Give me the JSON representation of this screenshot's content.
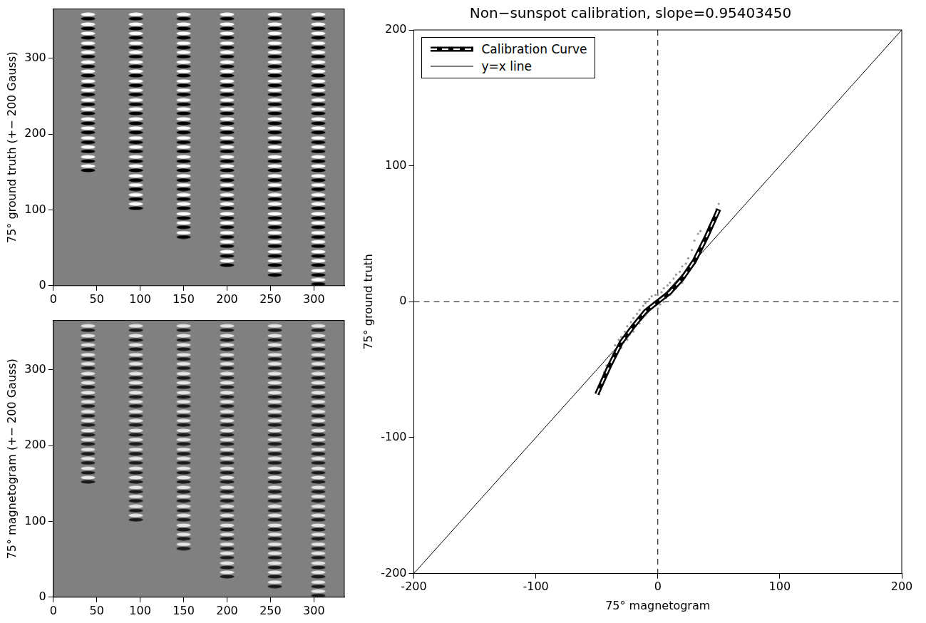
{
  "chart_data": [
    {
      "type": "image",
      "y_label": "75° ground truth (+− 200 Gauss)",
      "xlim": [
        0,
        335
      ],
      "ylim": [
        0,
        365
      ],
      "xticks": [
        0,
        50,
        100,
        150,
        200,
        250,
        300
      ],
      "yticks": [
        0,
        100,
        200,
        300
      ],
      "marker": "dipole",
      "colors": [
        "#ffffff",
        "#000000"
      ],
      "features": [
        {
          "x": 40,
          "y": [
            155,
            167,
            180,
            192,
            205,
            217,
            230,
            242,
            255,
            267,
            280,
            292,
            305,
            317,
            330,
            342,
            355
          ]
        },
        {
          "x": 95,
          "y": [
            105,
            117,
            130,
            142,
            155,
            167,
            180,
            192,
            205,
            217,
            230,
            242,
            255,
            267,
            280,
            292,
            305,
            317,
            330,
            342,
            355
          ]
        },
        {
          "x": 150,
          "y": [
            67,
            80,
            92,
            105,
            117,
            130,
            142,
            155,
            167,
            180,
            192,
            205,
            217,
            230,
            242,
            255,
            267,
            280,
            292,
            305,
            317,
            330,
            342,
            355
          ]
        },
        {
          "x": 200,
          "y": [
            30,
            42,
            55,
            67,
            80,
            92,
            105,
            117,
            130,
            142,
            155,
            167,
            180,
            192,
            205,
            217,
            230,
            242,
            255,
            267,
            280,
            292,
            305,
            317,
            330,
            342,
            355
          ]
        },
        {
          "x": 255,
          "y": [
            17,
            30,
            42,
            55,
            67,
            80,
            92,
            105,
            117,
            130,
            142,
            155,
            167,
            180,
            192,
            205,
            217,
            230,
            242,
            255,
            267,
            280,
            292,
            305,
            317,
            330,
            342,
            355
          ]
        },
        {
          "x": 305,
          "y": [
            5,
            17,
            30,
            42,
            55,
            67,
            80,
            92,
            105,
            117,
            130,
            142,
            155,
            167,
            180,
            192,
            205,
            217,
            230,
            242,
            255,
            267,
            280,
            292,
            305,
            317,
            330,
            342,
            355
          ]
        }
      ]
    },
    {
      "type": "image",
      "y_label": "75° magnetogram (+− 200 Gauss)",
      "xlim": [
        0,
        335
      ],
      "ylim": [
        0,
        365
      ],
      "xticks": [
        0,
        50,
        100,
        150,
        200,
        250,
        300
      ],
      "yticks": [
        0,
        100,
        200,
        300
      ],
      "marker": "dipole",
      "colors": [
        "#e6e6e6",
        "#1a1a1a"
      ],
      "features": [
        {
          "x": 40,
          "y": [
            155,
            167,
            180,
            192,
            205,
            217,
            230,
            242,
            255,
            267,
            280,
            292,
            305,
            317,
            330,
            342,
            355
          ]
        },
        {
          "x": 95,
          "y": [
            105,
            117,
            130,
            142,
            155,
            167,
            180,
            192,
            205,
            217,
            230,
            242,
            255,
            267,
            280,
            292,
            305,
            317,
            330,
            342,
            355
          ]
        },
        {
          "x": 150,
          "y": [
            67,
            80,
            92,
            105,
            117,
            130,
            142,
            155,
            167,
            180,
            192,
            205,
            217,
            230,
            242,
            255,
            267,
            280,
            292,
            305,
            317,
            330,
            342,
            355
          ]
        },
        {
          "x": 200,
          "y": [
            30,
            42,
            55,
            67,
            80,
            92,
            105,
            117,
            130,
            142,
            155,
            167,
            180,
            192,
            205,
            217,
            230,
            242,
            255,
            267,
            280,
            292,
            305,
            317,
            330,
            342,
            355
          ]
        },
        {
          "x": 255,
          "y": [
            17,
            30,
            42,
            55,
            67,
            80,
            92,
            105,
            117,
            130,
            142,
            155,
            167,
            180,
            192,
            205,
            217,
            230,
            242,
            255,
            267,
            280,
            292,
            305,
            317,
            330,
            342,
            355
          ]
        },
        {
          "x": 305,
          "y": [
            5,
            17,
            30,
            42,
            55,
            67,
            80,
            92,
            105,
            117,
            130,
            142,
            155,
            167,
            180,
            192,
            205,
            217,
            230,
            242,
            255,
            267,
            280,
            292,
            305,
            317,
            330,
            342,
            355
          ]
        }
      ]
    },
    {
      "type": "scatter",
      "title": "Non−sunspot calibration, slope=0.95403450",
      "x_label": "75° magnetogram",
      "y_label": "75° ground truth",
      "xlim": [
        -200,
        200
      ],
      "ylim": [
        -200,
        200
      ],
      "xticks": [
        -200,
        -100,
        0,
        100,
        200
      ],
      "yticks": [
        -200,
        -100,
        0,
        100,
        200
      ],
      "legend": "upper left",
      "reference_lines": [
        {
          "axis": "x",
          "value": 0,
          "line_style": "dashed"
        },
        {
          "axis": "y",
          "value": 0,
          "line_style": "dashed"
        }
      ],
      "series": [
        {
          "type": "scatter",
          "marker": "dot",
          "color": "#999999",
          "x": [
            -48,
            -45,
            -44,
            -42,
            -40,
            -40,
            -38,
            -37,
            -35,
            -35,
            -33,
            -32,
            -30,
            -30,
            -28,
            -27,
            -25,
            -25,
            -23,
            -22,
            -20,
            -20,
            -18,
            -17,
            -15,
            -15,
            -13,
            -12,
            -10,
            -10,
            -8,
            -7,
            -5,
            -5,
            -3,
            -2,
            0,
            0,
            2,
            3,
            5,
            5,
            7,
            8,
            10,
            10,
            12,
            13,
            15,
            15,
            17,
            18,
            20,
            20,
            22,
            23,
            25,
            25,
            28,
            28,
            30,
            30,
            32,
            33,
            35,
            35,
            38,
            40,
            42,
            45,
            48,
            50
          ],
          "values": [
            -68,
            -60,
            -52,
            -47,
            -50,
            -40,
            -44,
            -38,
            -40,
            -32,
            -36,
            -28,
            -34,
            -26,
            -30,
            -22,
            -28,
            -18,
            -24,
            -15,
            -22,
            -12,
            -18,
            -9,
            -16,
            -6,
            -12,
            -3,
            -10,
            -1,
            -6,
            2,
            -4,
            4,
            -2,
            5,
            -5,
            5,
            -2,
            7,
            0,
            10,
            3,
            12,
            5,
            14,
            8,
            17,
            10,
            20,
            13,
            22,
            14,
            26,
            18,
            28,
            22,
            32,
            26,
            38,
            28,
            45,
            32,
            50,
            38,
            52,
            45,
            50,
            55,
            60,
            68,
            72
          ]
        },
        {
          "name": "Calibration Curve",
          "type": "line",
          "color": "#000000",
          "line_style": "dashed",
          "x": [
            -50,
            -40,
            -30,
            -20,
            -10,
            0,
            10,
            20,
            30,
            40,
            50
          ],
          "values": [
            -68,
            -48,
            -30,
            -18,
            -7,
            0,
            7,
            17,
            30,
            48,
            68
          ]
        },
        {
          "name": "y=x line",
          "type": "line",
          "color": "#000000",
          "line_style": "solid",
          "x": [
            -200,
            200
          ],
          "values": [
            -200,
            200
          ]
        }
      ]
    }
  ]
}
